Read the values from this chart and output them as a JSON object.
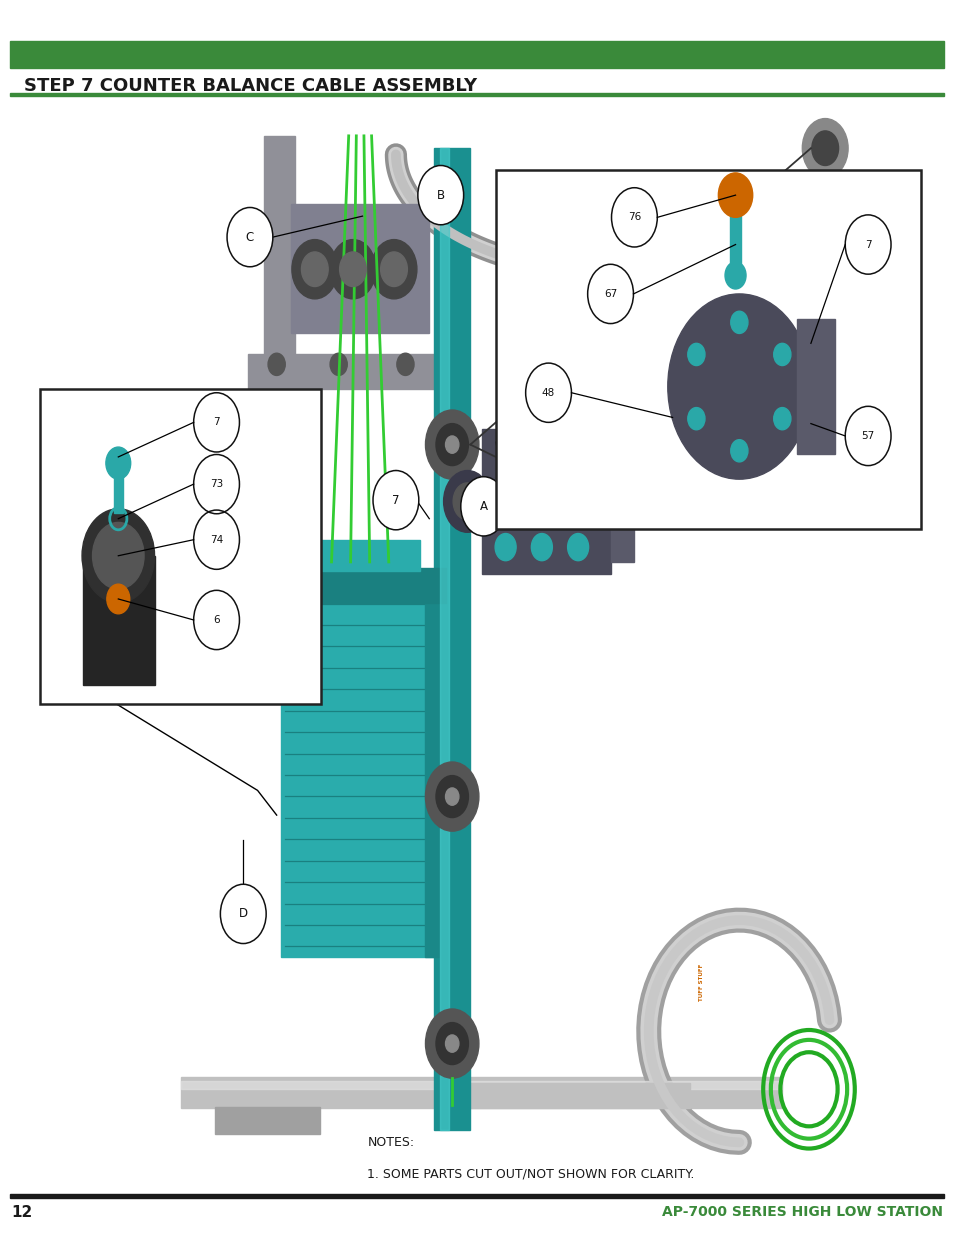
{
  "title": "STEP 7 COUNTER BALANCE CABLE ASSEMBLY",
  "title_color": "#1a1a1a",
  "header_bar_color": "#3a8a3a",
  "footer_line_color": "#1a1a1a",
  "page_number": "12",
  "footer_text": "AP-7000 SERIES HIGH LOW STATION",
  "footer_text_color": "#3a8a3a",
  "notes_line1": "NOTES:",
  "notes_line2": "1. SOME PARTS CUT OUT/NOT SHOWN FOR CLARITY.",
  "notes_color": "#1a1a1a",
  "bg_color": "#ffffff"
}
